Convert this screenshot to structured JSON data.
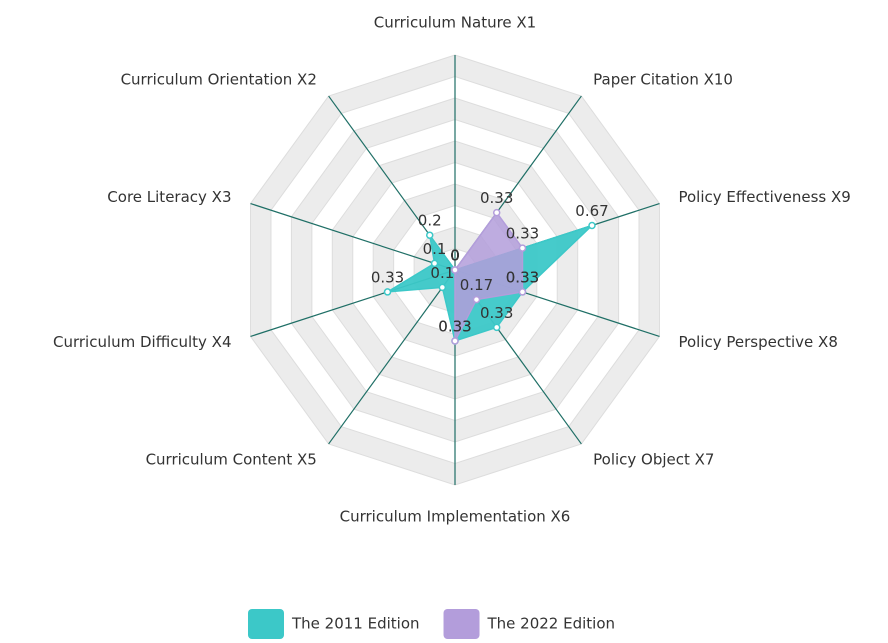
{
  "chart_data": {
    "type": "radar",
    "categories": [
      "Curriculum Nature X1",
      "Curriculum Orientation X2",
      "Core Literacy X3",
      "Curriculum Difficulty X4",
      "Curriculum Content X5",
      "Curriculum Implementation X6",
      "Policy Object X7",
      "Policy Perspective X8",
      "Policy Effectiveness X9",
      "Paper Citation X10"
    ],
    "rlim": [
      0,
      1
    ],
    "series": [
      {
        "name": "The 2011 Edition",
        "color": "#3cc8c8",
        "values": [
          0,
          0.2,
          0.1,
          0.33,
          0.1,
          0.33,
          0.33,
          0.33,
          0.67,
          0
        ]
      },
      {
        "name": "The 2022 Edition",
        "color": "#b39ddb",
        "values": [
          0,
          0,
          0,
          0,
          0,
          0.33,
          0.17,
          0.33,
          0.33,
          0.33
        ]
      }
    ],
    "legend": "bottom"
  }
}
